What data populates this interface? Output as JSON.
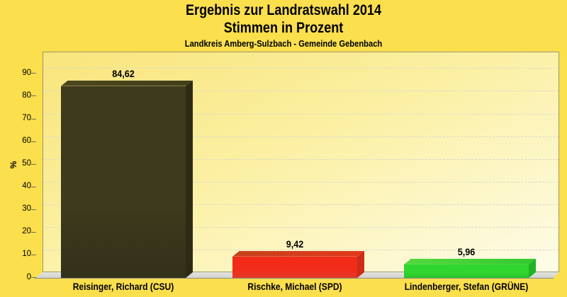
{
  "titles": {
    "line1": "Ergebnis zur Landratswahl 2014",
    "line2": "Stimmen in Prozent",
    "subtitle": "Landkreis Amberg-Sulzbach - Gemeinde Gebenbach"
  },
  "chart_data": {
    "type": "bar",
    "style": "3d-bars",
    "title": "Ergebnis zur Landratswahl 2014 - Stimmen in Prozent",
    "subtitle": "Landkreis Amberg-Sulzbach - Gemeinde Gebenbach",
    "categories": [
      "Reisinger, Richard (CSU)",
      "Rischke, Michael (SPD)",
      "Lindenberger, Stefan (GRÜNE)"
    ],
    "values": [
      84.62,
      9.42,
      5.96
    ],
    "value_labels": [
      "84,62",
      "9,42",
      "5,96"
    ],
    "xlabel": "",
    "ylabel": "%",
    "ylim": [
      0,
      97
    ],
    "yticks": [
      0,
      10,
      20,
      30,
      40,
      50,
      60,
      70,
      80,
      90
    ],
    "grid": true,
    "legend": "none",
    "bar_colors": [
      {
        "party": "CSU",
        "front": "#3e3a1d",
        "front2": "#34311a",
        "top": "#4c471e",
        "top2": "#423e1b",
        "side": "#2e2b15"
      },
      {
        "party": "SPD",
        "front": "#f22b19",
        "front2": "#e23b28",
        "top": "#c4421f",
        "top2": "#e2381c",
        "side": "#cb2d18"
      },
      {
        "party": "GRÜNE",
        "front": "#2fd62f",
        "front2": "#2bc32b",
        "top": "#55d83e",
        "top2": "#33c930",
        "side": "#22b226"
      }
    ]
  },
  "colors": {
    "page_bg": "#fbdf4d",
    "plot_border": "#9a9a70",
    "grid": "#d8d8cf",
    "floor_edge": "#8e8e8a",
    "text": "#000000"
  }
}
